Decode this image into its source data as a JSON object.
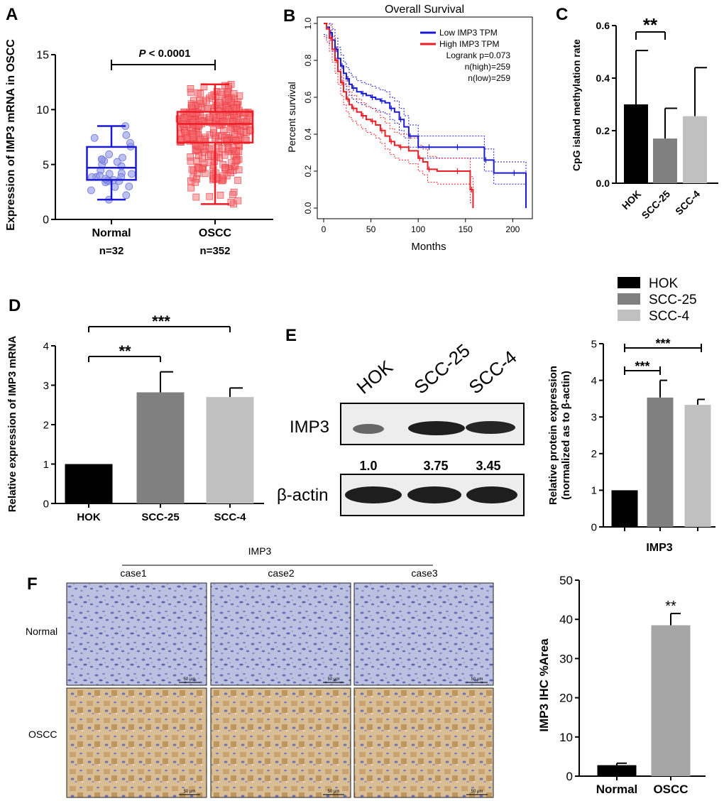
{
  "colors": {
    "blue": "#1a1ad6",
    "red": "#ee1c25",
    "hok": "#000000",
    "scc25": "#808080",
    "scc4": "#c0c0c0",
    "oscc_bar": "#a6a6a6",
    "band_blot": "#1e1e1e",
    "normal_tissue": "#b7bde0",
    "oscc_tissue": "#cfa977"
  },
  "panel_labels": {
    "a": "A",
    "b": "B",
    "c": "C",
    "d": "D",
    "e": "E",
    "f": "F"
  },
  "panel_a": {
    "ylabel": "Expression of IMP3 mRNA in OSCC",
    "sig": "P < 0.0001",
    "sig_p": "P",
    "sig_rest": " < 0.0001",
    "n_normal": "n=32",
    "n_oscc": "n=352"
  },
  "panel_b": {
    "title": "Overall Survival",
    "xlabel": "Months",
    "ylabel": "Percent survival",
    "legend_low": "Low IMP3 TPM",
    "legend_high": "High IMP3 TPM",
    "logrank": "Logrank p=0.073",
    "n_high": "n(high)=259",
    "n_low": "n(low)=259"
  },
  "panel_c": {
    "ylabel": "CpG island methylation rate",
    "sig": "**"
  },
  "panel_d": {
    "ylabel": "Relative expression of IMP3 mRNA",
    "sig1": "**",
    "sig2": "***"
  },
  "panel_e": {
    "lanes": [
      "HOK",
      "SCC-25",
      "SCC-4"
    ],
    "imp3_label": "IMP3",
    "actin_label": "β-actin",
    "quant": [
      "1.0",
      "3.75",
      "3.45"
    ],
    "legend": [
      "HOK",
      "SCC-25",
      "SCC-4"
    ],
    "ylabel1": "Relative protein expression",
    "ylabel2": "(normalized as to β-actin)",
    "xlabel": "IMP3",
    "sig1": "***",
    "sig2": "***"
  },
  "panel_f": {
    "header": "IMP3",
    "cases": [
      "case1",
      "case2",
      "case3"
    ],
    "row_normal": "Normal",
    "row_oscc": "OSCC",
    "scale_bar": "50 μm",
    "ylabel": "IMP3 IHC %Area",
    "sig": "**"
  },
  "chart_data": [
    {
      "id": "A",
      "type": "scatter",
      "title": "",
      "ylabel": "Expression of IMP3 mRNA in OSCC",
      "categories": [
        "Normal",
        "OSCC"
      ],
      "ylim": [
        0,
        15
      ],
      "yticks": [
        0,
        5,
        10,
        15
      ],
      "boxes": [
        {
          "name": "Normal",
          "n": 32,
          "min": 1.8,
          "q1": 3.6,
          "median": 4.7,
          "q3": 6.6,
          "max": 8.5
        },
        {
          "name": "OSCC",
          "n": 352,
          "min": 1.4,
          "q1": 7.0,
          "median": 8.7,
          "q3": 9.8,
          "max": 12.3
        }
      ],
      "annotation": "P < 0.0001"
    },
    {
      "id": "B",
      "type": "line",
      "title": "Overall Survival",
      "xlabel": "Months",
      "ylabel": "Percent survival",
      "xlim": [
        0,
        220
      ],
      "ylim": [
        0,
        1.0
      ],
      "xticks": [
        0,
        50,
        100,
        150,
        200
      ],
      "yticks": [
        0.0,
        0.2,
        0.4,
        0.6,
        0.8,
        1.0
      ],
      "series": [
        {
          "name": "Low IMP3 TPM",
          "x": [
            0,
            3,
            6,
            9,
            12,
            15,
            18,
            21,
            24,
            27,
            30,
            35,
            40,
            45,
            50,
            55,
            60,
            65,
            70,
            75,
            80,
            85,
            90,
            100,
            110,
            120,
            140,
            160,
            170,
            180,
            200,
            214
          ],
          "y": [
            1.0,
            0.98,
            0.95,
            0.91,
            0.86,
            0.81,
            0.77,
            0.73,
            0.7,
            0.67,
            0.65,
            0.63,
            0.62,
            0.61,
            0.6,
            0.59,
            0.58,
            0.57,
            0.54,
            0.52,
            0.48,
            0.44,
            0.39,
            0.33,
            0.33,
            0.33,
            0.33,
            0.33,
            0.26,
            0.19,
            0.19,
            0.0
          ]
        },
        {
          "name": "High IMP3 TPM",
          "x": [
            0,
            3,
            6,
            9,
            12,
            15,
            18,
            21,
            24,
            27,
            30,
            35,
            40,
            45,
            50,
            55,
            60,
            65,
            70,
            75,
            80,
            90,
            100,
            105,
            110,
            120,
            140,
            150,
            155,
            158
          ],
          "y": [
            1.0,
            0.97,
            0.92,
            0.86,
            0.8,
            0.74,
            0.68,
            0.63,
            0.59,
            0.56,
            0.54,
            0.52,
            0.5,
            0.48,
            0.47,
            0.45,
            0.42,
            0.39,
            0.36,
            0.34,
            0.33,
            0.31,
            0.27,
            0.25,
            0.21,
            0.2,
            0.2,
            0.2,
            0.1,
            0.0
          ]
        }
      ],
      "legend": "top-right",
      "annotations": [
        "Logrank p=0.073",
        "n(high)=259",
        "n(low)=259"
      ]
    },
    {
      "id": "C",
      "type": "bar",
      "ylabel": "CpG island methylation rate",
      "categories": [
        "HOK",
        "SCC-25",
        "SCC-4"
      ],
      "values": [
        0.3,
        0.17,
        0.255
      ],
      "errors": [
        0.205,
        0.115,
        0.185
      ],
      "ylim": [
        0,
        0.6
      ],
      "yticks": [
        0.0,
        0.2,
        0.4,
        0.6
      ],
      "significance": [
        {
          "between": [
            "HOK",
            "SCC-25"
          ],
          "label": "**"
        }
      ]
    },
    {
      "id": "D",
      "type": "bar",
      "ylabel": "Relative expression of IMP3 mRNA",
      "categories": [
        "HOK",
        "SCC-25",
        "SCC-4"
      ],
      "values": [
        1.0,
        2.82,
        2.7
      ],
      "errors": [
        0,
        0.52,
        0.23
      ],
      "ylim": [
        0,
        4
      ],
      "yticks": [
        0,
        1,
        2,
        3,
        4
      ],
      "significance": [
        {
          "between": [
            "HOK",
            "SCC-25"
          ],
          "label": "**"
        },
        {
          "between": [
            "HOK",
            "SCC-4"
          ],
          "label": "***"
        }
      ]
    },
    {
      "id": "E",
      "type": "bar",
      "ylabel": "Relative protein expression (normalized as to β-actin)",
      "xlabel": "IMP3",
      "categories": [
        "HOK",
        "SCC-25",
        "SCC-4"
      ],
      "values": [
        1.0,
        3.53,
        3.33
      ],
      "errors": [
        0,
        0.47,
        0.15
      ],
      "ylim": [
        0,
        5
      ],
      "yticks": [
        0,
        1,
        2,
        3,
        4,
        5
      ],
      "legend": "top-left",
      "significance": [
        {
          "between": [
            "HOK",
            "SCC-25"
          ],
          "label": "***"
        },
        {
          "between": [
            "HOK",
            "SCC-4"
          ],
          "label": "***"
        }
      ]
    },
    {
      "id": "F",
      "type": "bar",
      "ylabel": "IMP3 IHC %Area",
      "categories": [
        "Normal",
        "OSCC"
      ],
      "values": [
        2.8,
        38.5
      ],
      "errors": [
        0.5,
        3.0
      ],
      "ylim": [
        0,
        50
      ],
      "yticks": [
        0,
        10,
        20,
        30,
        40,
        50
      ],
      "significance": [
        {
          "between": [
            "OSCC"
          ],
          "label": "**"
        }
      ]
    }
  ]
}
